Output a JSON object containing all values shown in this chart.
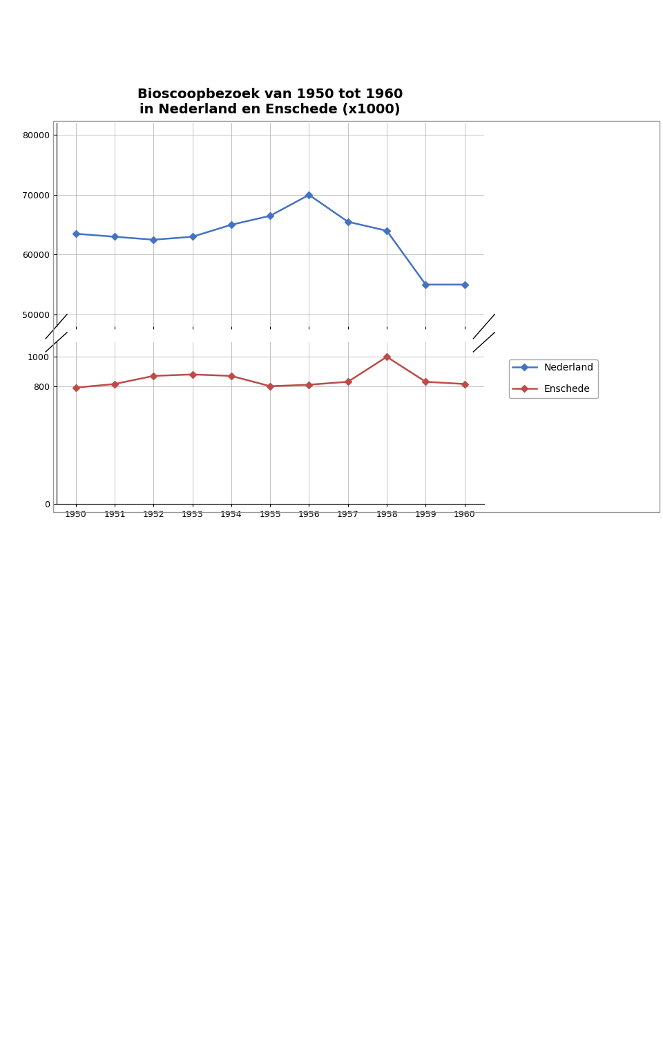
{
  "title_line1": "Bioscoopbezoek van 1950 tot 1960",
  "title_line2": "in Nederland en Enschede (x1000)",
  "years": [
    1950,
    1951,
    1952,
    1953,
    1954,
    1955,
    1956,
    1957,
    1958,
    1959,
    1960
  ],
  "nederland": [
    63500,
    63000,
    62500,
    63000,
    65000,
    66500,
    70000,
    65500,
    64000,
    55000,
    55000
  ],
  "enschede": [
    790,
    815,
    870,
    880,
    870,
    800,
    810,
    830,
    1000,
    830,
    815
  ],
  "nederland_color": "#4472C4",
  "enschede_color": "#BE4B48",
  "marker": "D",
  "linewidth": 1.8,
  "markersize": 5,
  "title_fontsize": 14,
  "tick_fontsize": 9,
  "legend_fontsize": 10,
  "grid_color": "#AAAAAA",
  "chart_bg": "#FFFFFF",
  "page_bg": "#FFFFFF",
  "upper_yticks": [
    50000,
    60000,
    70000,
    80000
  ],
  "lower_yticks": [
    0,
    800,
    1000
  ],
  "outer_box_color": "#999999"
}
